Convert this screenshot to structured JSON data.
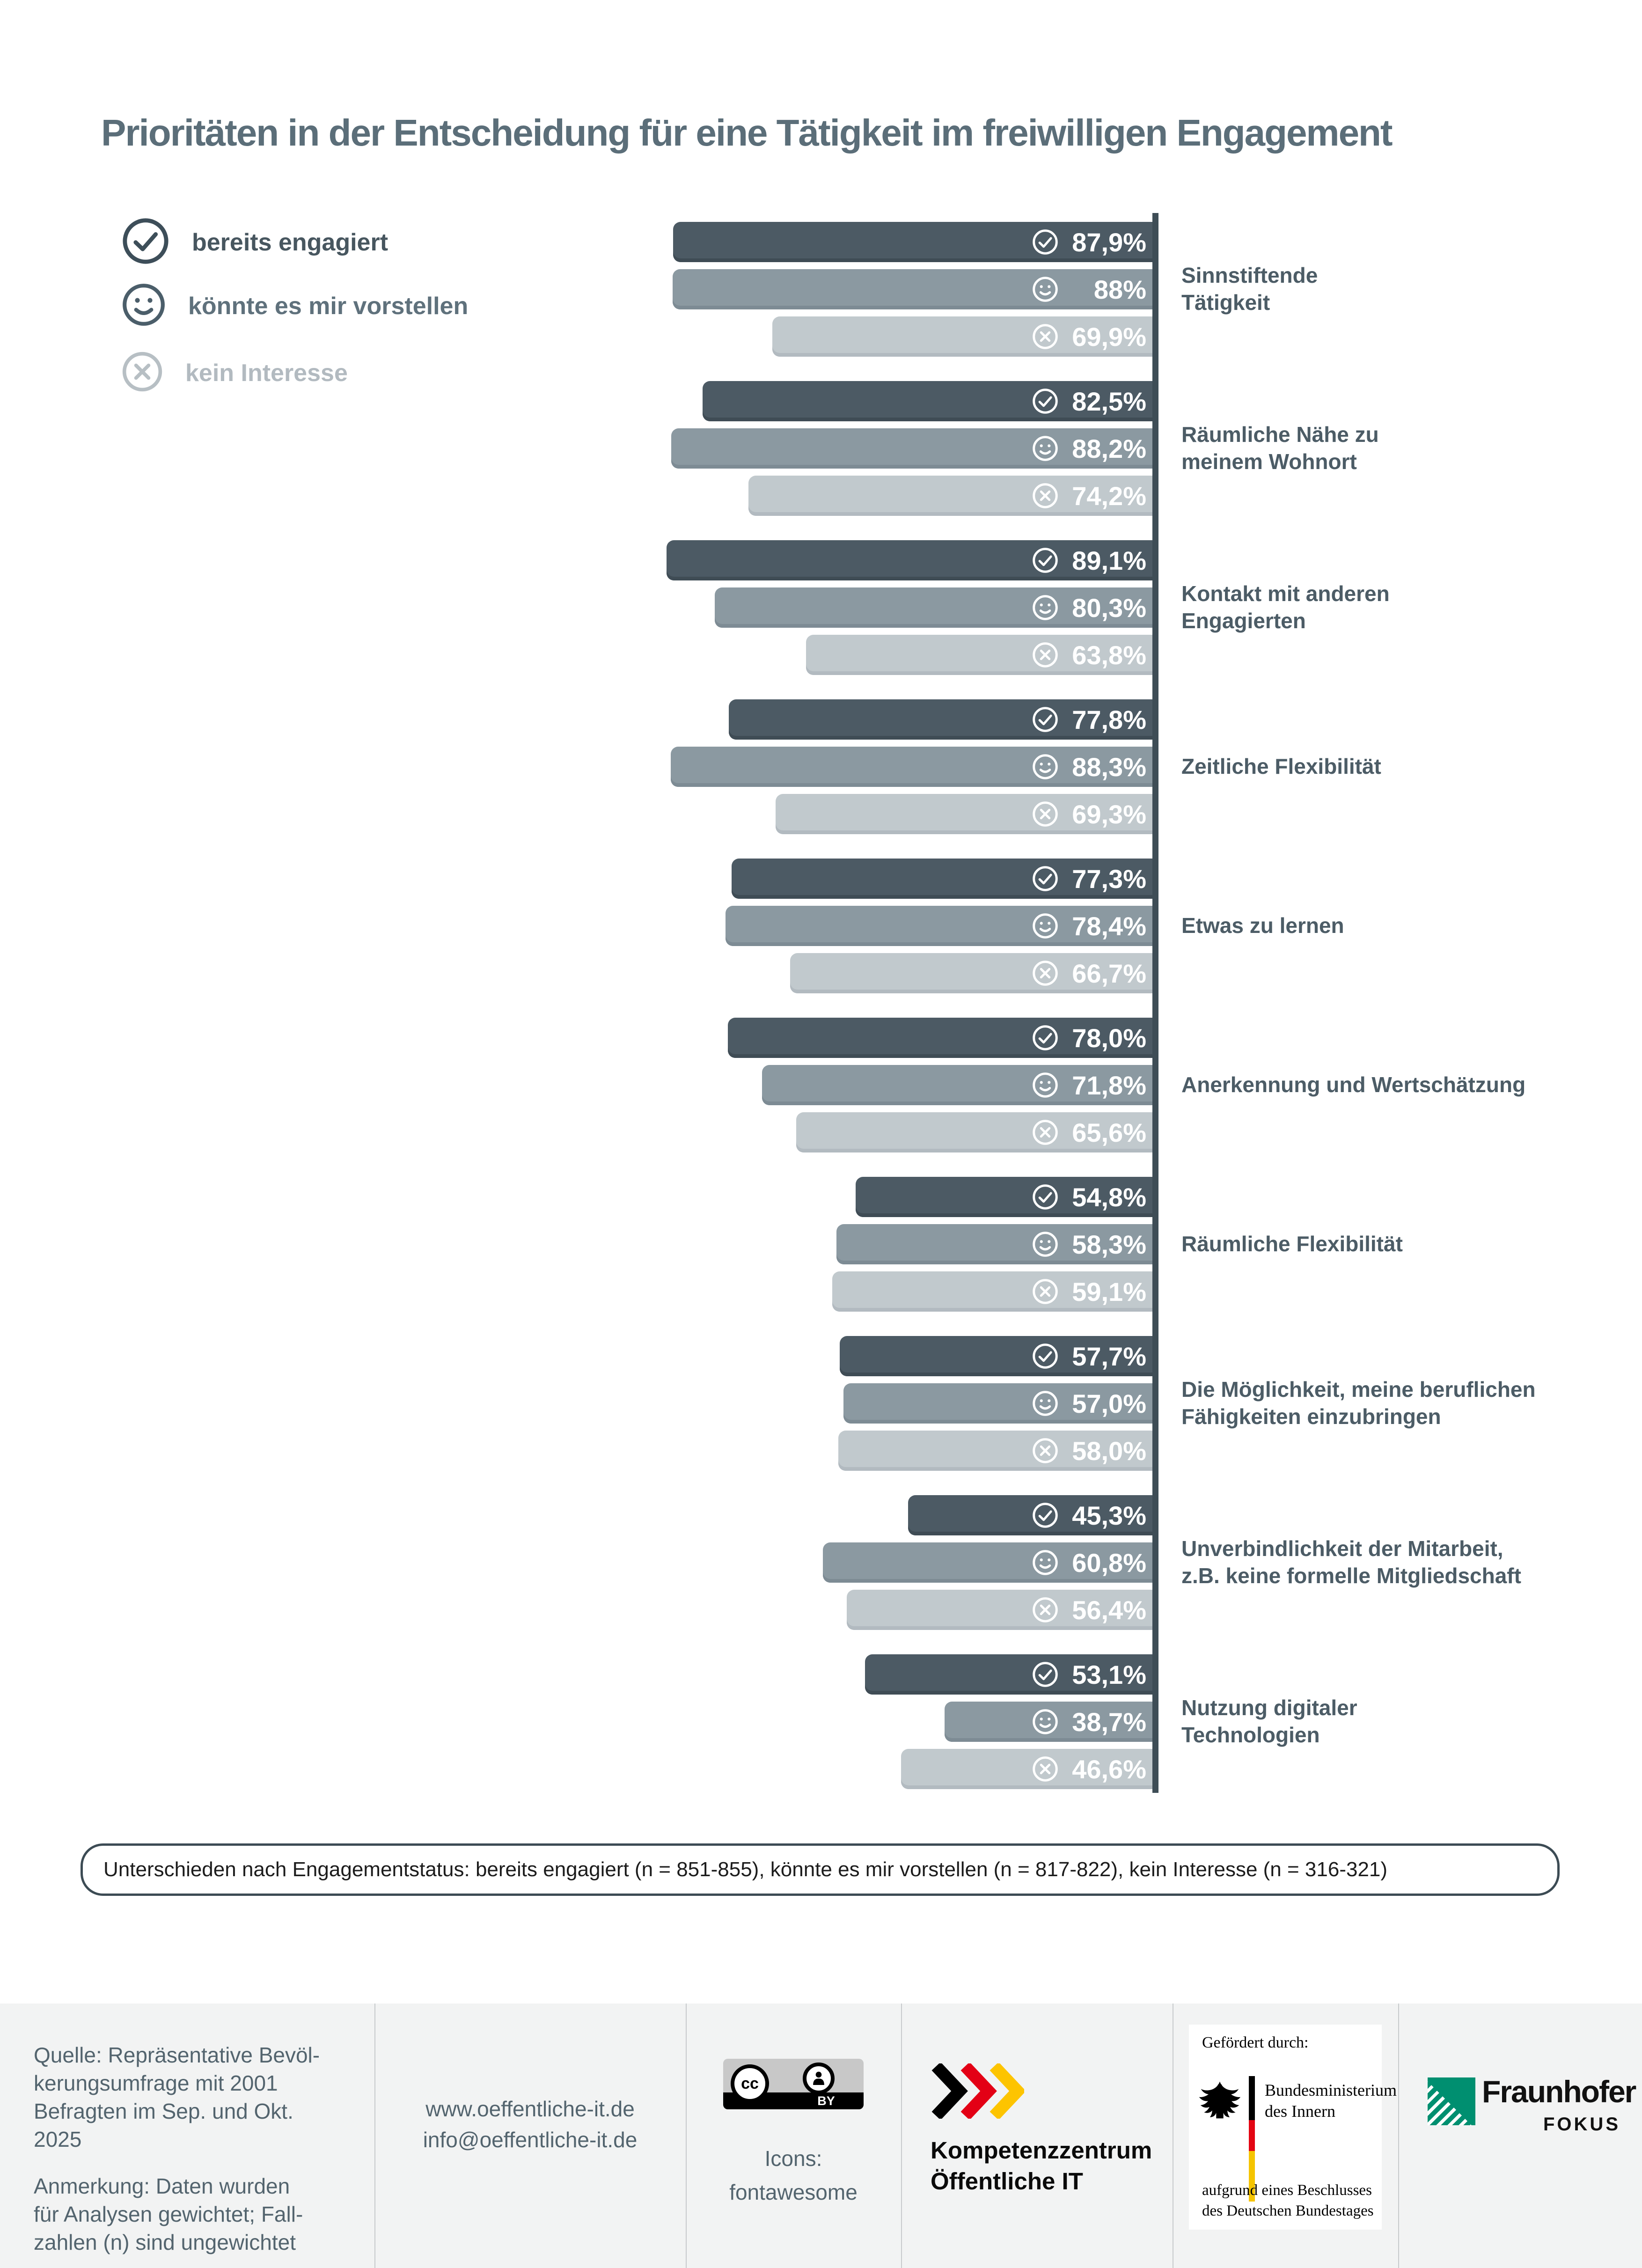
{
  "title": "Prioritäten in der Entscheidung für eine Tätigkeit im freiwilligen Engagement",
  "legend": {
    "items": [
      {
        "label": "bereits engagiert",
        "icon": "check-circle-icon"
      },
      {
        "label": "könnte es mir vorstellen",
        "icon": "smiley-icon"
      },
      {
        "label": "kein Interesse",
        "icon": "x-circle-icon"
      }
    ]
  },
  "chart_data": {
    "type": "bar",
    "orientation": "horizontal",
    "unit": "%",
    "xlim": [
      0,
      100
    ],
    "grid": false,
    "legend_position": "top-left",
    "value_labels_shown": true,
    "series_names": [
      "bereits engagiert",
      "könnte es mir vorstellen",
      "kein Interesse"
    ],
    "groups": [
      {
        "category": "Sinnstiftende Tätigkeit",
        "category_lines": [
          "Sinnstiftende",
          "Tätigkeit"
        ],
        "values": [
          87.9,
          88,
          69.9
        ],
        "labels": [
          "87,9%",
          "88%",
          "69,9%"
        ]
      },
      {
        "category": "Räumliche Nähe zu meinem Wohnort",
        "category_lines": [
          "Räumliche Nähe zu",
          "meinem Wohnort"
        ],
        "values": [
          82.5,
          88.2,
          74.2
        ],
        "labels": [
          "82,5%",
          "88,2%",
          "74,2%"
        ]
      },
      {
        "category": "Kontakt mit anderen Engagierten",
        "category_lines": [
          "Kontakt mit anderen",
          "Engagierten"
        ],
        "values": [
          89.1,
          80.3,
          63.8
        ],
        "labels": [
          "89,1%",
          "80,3%",
          "63,8%"
        ]
      },
      {
        "category": "Zeitliche Flexibilität",
        "category_lines": [
          "Zeitliche Flexibilität"
        ],
        "values": [
          77.8,
          88.3,
          69.3
        ],
        "labels": [
          "77,8%",
          "88,3%",
          "69,3%"
        ]
      },
      {
        "category": "Etwas zu lernen",
        "category_lines": [
          "Etwas zu lernen"
        ],
        "values": [
          77.3,
          78.4,
          66.7
        ],
        "labels": [
          "77,3%",
          "78,4%",
          "66,7%"
        ]
      },
      {
        "category": "Anerkennung und Wertschätzung",
        "category_lines": [
          "Anerkennung und Wertschätzung"
        ],
        "values": [
          78.0,
          71.8,
          65.6
        ],
        "labels": [
          "78,0%",
          "71,8%",
          "65,6%"
        ]
      },
      {
        "category": "Räumliche Flexibilität",
        "category_lines": [
          "Räumliche Flexibilität"
        ],
        "values": [
          54.8,
          58.3,
          59.1
        ],
        "labels": [
          "54,8%",
          "58,3%",
          "59,1%"
        ]
      },
      {
        "category": "Die Möglichkeit, meine beruflichen Fähigkeiten einzubringen",
        "category_lines": [
          "Die Möglichkeit, meine beruflichen",
          "Fähigkeiten einzubringen"
        ],
        "values": [
          57.7,
          57.0,
          58.0
        ],
        "labels": [
          "57,7%",
          "57,0%",
          "58,0%"
        ]
      },
      {
        "category": "Unverbindlichkeit der Mitarbeit, z.B. keine formelle Mitgliedschaft",
        "category_lines": [
          "Unverbindlichkeit der Mitarbeit,",
          "z.B. keine formelle Mitgliedschaft"
        ],
        "values": [
          45.3,
          60.8,
          56.4
        ],
        "labels": [
          "45,3%",
          "60,8%",
          "56,4%"
        ]
      },
      {
        "category": "Nutzung digitaler Technologien",
        "category_lines": [
          "Nutzung digitaler",
          "Technologien"
        ],
        "values": [
          53.1,
          38.7,
          46.6
        ],
        "labels": [
          "53,1%",
          "38,7%",
          "46,6%"
        ]
      }
    ]
  },
  "footnote": "Unterschieden nach Engagementstatus: bereits engagiert (n = 851-855), könnte es mir vorstellen (n = 817-822), kein Interesse (n = 316-321)",
  "footer": {
    "source_lines": [
      "Quelle: Repräsentative Bevöl-",
      "kerungsumfrage mit 2001",
      "Befragten im Sep. und Okt.",
      "2025"
    ],
    "note_lines": [
      "Anmerkung: Daten wurden",
      "für Analysen gewichtet; Fall-",
      "zahlen (n) sind ungewichtet"
    ],
    "website": "www.oeffentliche-it.de",
    "email": "info@oeffentliche-it.de",
    "license_badge": "BY",
    "license_cc": "cc",
    "icons_credit_lines": [
      "Icons:",
      "fontawesome"
    ],
    "org_lines": [
      "Kompetenzzentrum",
      "Öffentliche IT"
    ],
    "funding_heading": "Gefördert durch:",
    "ministry_lines": [
      "Bundesministerium",
      "des Innern"
    ],
    "funding_note_lines": [
      "aufgrund eines Beschlusses",
      "des Deutschen Bundestages"
    ],
    "fraunhofer": "Fraunhofer",
    "fraunhofer_sub": "FOKUS"
  },
  "colors": {
    "series_engaged": "#4c5a64",
    "series_imagine": "#8b99a1",
    "series_no_interest": "#c1c9cd",
    "axis": "#3e4d56",
    "title": "#5b6e79",
    "category_label": "#4c5c66",
    "footer_bg": "#f2f3f3",
    "chevron_black": "#000000",
    "chevron_red": "#e30015",
    "chevron_gold": "#fdc400",
    "flag_red": "#e30613",
    "flag_gold": "#f5c400",
    "fraunhofer_green": "#008f70"
  }
}
